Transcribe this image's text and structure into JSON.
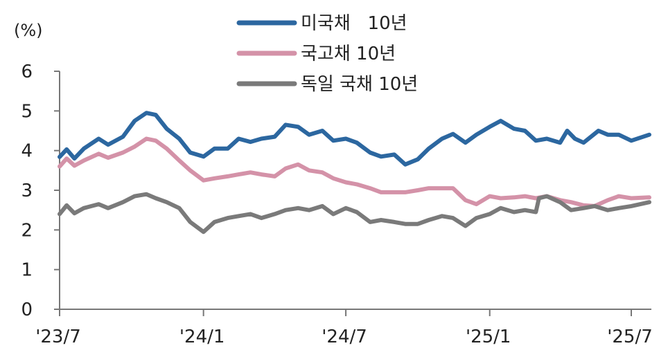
{
  "chart_data": {
    "type": "line",
    "unit_label": "(%)",
    "ylim": [
      0,
      6
    ],
    "yticks": [
      0,
      1,
      2,
      3,
      4,
      5,
      6
    ],
    "x_start": "2023-07-01",
    "x_end": "2025-07-24",
    "xticks": [
      {
        "date": "2023-07-01",
        "label": "'23/7"
      },
      {
        "date": "2024-01-01",
        "label": "'24/1"
      },
      {
        "date": "2024-07-01",
        "label": "'24/7"
      },
      {
        "date": "2025-01-01",
        "label": "'25/1"
      },
      {
        "date": "2025-07-01",
        "label": "'25/7"
      }
    ],
    "grid": false,
    "legend_position": "top-center",
    "series": [
      {
        "name": "미국채   10년",
        "color": "#2c67a0",
        "points": [
          [
            "2023-07-01",
            3.84
          ],
          [
            "2023-07-10",
            4.03
          ],
          [
            "2023-07-20",
            3.8
          ],
          [
            "2023-08-01",
            4.05
          ],
          [
            "2023-08-20",
            4.3
          ],
          [
            "2023-09-01",
            4.15
          ],
          [
            "2023-09-20",
            4.35
          ],
          [
            "2023-10-05",
            4.75
          ],
          [
            "2023-10-20",
            4.95
          ],
          [
            "2023-11-01",
            4.9
          ],
          [
            "2023-11-15",
            4.55
          ],
          [
            "2023-12-01",
            4.3
          ],
          [
            "2023-12-15",
            3.95
          ],
          [
            "2024-01-01",
            3.85
          ],
          [
            "2024-01-15",
            4.05
          ],
          [
            "2024-02-01",
            4.05
          ],
          [
            "2024-02-15",
            4.3
          ],
          [
            "2024-03-01",
            4.22
          ],
          [
            "2024-03-15",
            4.3
          ],
          [
            "2024-04-01",
            4.35
          ],
          [
            "2024-04-15",
            4.65
          ],
          [
            "2024-05-01",
            4.6
          ],
          [
            "2024-05-15",
            4.4
          ],
          [
            "2024-06-01",
            4.5
          ],
          [
            "2024-06-15",
            4.25
          ],
          [
            "2024-07-01",
            4.3
          ],
          [
            "2024-07-15",
            4.2
          ],
          [
            "2024-08-01",
            3.95
          ],
          [
            "2024-08-15",
            3.85
          ],
          [
            "2024-09-01",
            3.9
          ],
          [
            "2024-09-15",
            3.65
          ],
          [
            "2024-10-01",
            3.78
          ],
          [
            "2024-10-15",
            4.05
          ],
          [
            "2024-11-01",
            4.3
          ],
          [
            "2024-11-15",
            4.42
          ],
          [
            "2024-12-01",
            4.2
          ],
          [
            "2024-12-15",
            4.4
          ],
          [
            "2025-01-01",
            4.6
          ],
          [
            "2025-01-15",
            4.75
          ],
          [
            "2025-02-01",
            4.55
          ],
          [
            "2025-02-15",
            4.5
          ],
          [
            "2025-03-01",
            4.25
          ],
          [
            "2025-03-15",
            4.3
          ],
          [
            "2025-04-01",
            4.2
          ],
          [
            "2025-04-10",
            4.5
          ],
          [
            "2025-04-20",
            4.3
          ],
          [
            "2025-05-01",
            4.2
          ],
          [
            "2025-05-20",
            4.5
          ],
          [
            "2025-06-01",
            4.4
          ],
          [
            "2025-06-15",
            4.4
          ],
          [
            "2025-07-01",
            4.25
          ],
          [
            "2025-07-24",
            4.4
          ]
        ]
      },
      {
        "name": "국고채 10년",
        "color": "#d492a8",
        "points": [
          [
            "2023-07-01",
            3.6
          ],
          [
            "2023-07-10",
            3.8
          ],
          [
            "2023-07-20",
            3.62
          ],
          [
            "2023-08-01",
            3.75
          ],
          [
            "2023-08-20",
            3.92
          ],
          [
            "2023-09-01",
            3.82
          ],
          [
            "2023-09-20",
            3.95
          ],
          [
            "2023-10-05",
            4.1
          ],
          [
            "2023-10-20",
            4.3
          ],
          [
            "2023-11-01",
            4.25
          ],
          [
            "2023-11-15",
            4.05
          ],
          [
            "2023-12-01",
            3.75
          ],
          [
            "2023-12-15",
            3.5
          ],
          [
            "2024-01-01",
            3.25
          ],
          [
            "2024-01-15",
            3.3
          ],
          [
            "2024-02-01",
            3.35
          ],
          [
            "2024-02-15",
            3.4
          ],
          [
            "2024-03-01",
            3.45
          ],
          [
            "2024-03-15",
            3.4
          ],
          [
            "2024-04-01",
            3.35
          ],
          [
            "2024-04-15",
            3.55
          ],
          [
            "2024-05-01",
            3.65
          ],
          [
            "2024-05-15",
            3.5
          ],
          [
            "2024-06-01",
            3.45
          ],
          [
            "2024-06-15",
            3.3
          ],
          [
            "2024-07-01",
            3.2
          ],
          [
            "2024-07-15",
            3.15
          ],
          [
            "2024-08-01",
            3.05
          ],
          [
            "2024-08-15",
            2.95
          ],
          [
            "2024-09-01",
            2.95
          ],
          [
            "2024-09-15",
            2.95
          ],
          [
            "2024-10-01",
            3.0
          ],
          [
            "2024-10-15",
            3.05
          ],
          [
            "2024-11-01",
            3.05
          ],
          [
            "2024-11-15",
            3.05
          ],
          [
            "2024-12-01",
            2.75
          ],
          [
            "2024-12-15",
            2.65
          ],
          [
            "2025-01-01",
            2.85
          ],
          [
            "2025-01-15",
            2.8
          ],
          [
            "2025-02-01",
            2.82
          ],
          [
            "2025-02-15",
            2.85
          ],
          [
            "2025-03-01",
            2.8
          ],
          [
            "2025-03-15",
            2.85
          ],
          [
            "2025-04-01",
            2.75
          ],
          [
            "2025-04-15",
            2.7
          ],
          [
            "2025-05-01",
            2.62
          ],
          [
            "2025-05-15",
            2.6
          ],
          [
            "2025-06-01",
            2.75
          ],
          [
            "2025-06-15",
            2.85
          ],
          [
            "2025-07-01",
            2.8
          ],
          [
            "2025-07-24",
            2.82
          ]
        ]
      },
      {
        "name": "독일 국채 10년",
        "color": "#7a7a7a",
        "points": [
          [
            "2023-07-01",
            2.4
          ],
          [
            "2023-07-10",
            2.62
          ],
          [
            "2023-07-20",
            2.42
          ],
          [
            "2023-08-01",
            2.55
          ],
          [
            "2023-08-20",
            2.65
          ],
          [
            "2023-09-01",
            2.55
          ],
          [
            "2023-09-20",
            2.7
          ],
          [
            "2023-10-05",
            2.85
          ],
          [
            "2023-10-20",
            2.9
          ],
          [
            "2023-11-01",
            2.8
          ],
          [
            "2023-11-15",
            2.7
          ],
          [
            "2023-12-01",
            2.55
          ],
          [
            "2023-12-15",
            2.2
          ],
          [
            "2024-01-01",
            1.95
          ],
          [
            "2024-01-15",
            2.2
          ],
          [
            "2024-02-01",
            2.3
          ],
          [
            "2024-02-15",
            2.35
          ],
          [
            "2024-03-01",
            2.4
          ],
          [
            "2024-03-15",
            2.3
          ],
          [
            "2024-04-01",
            2.4
          ],
          [
            "2024-04-15",
            2.5
          ],
          [
            "2024-05-01",
            2.55
          ],
          [
            "2024-05-15",
            2.5
          ],
          [
            "2024-06-01",
            2.6
          ],
          [
            "2024-06-15",
            2.4
          ],
          [
            "2024-07-01",
            2.55
          ],
          [
            "2024-07-15",
            2.45
          ],
          [
            "2024-08-01",
            2.2
          ],
          [
            "2024-08-15",
            2.25
          ],
          [
            "2024-09-01",
            2.2
          ],
          [
            "2024-09-15",
            2.15
          ],
          [
            "2024-10-01",
            2.15
          ],
          [
            "2024-10-15",
            2.25
          ],
          [
            "2024-11-01",
            2.35
          ],
          [
            "2024-11-15",
            2.3
          ],
          [
            "2024-12-01",
            2.1
          ],
          [
            "2024-12-15",
            2.3
          ],
          [
            "2025-01-01",
            2.4
          ],
          [
            "2025-01-15",
            2.55
          ],
          [
            "2025-02-01",
            2.45
          ],
          [
            "2025-02-15",
            2.5
          ],
          [
            "2025-03-01",
            2.45
          ],
          [
            "2025-03-05",
            2.8
          ],
          [
            "2025-03-15",
            2.85
          ],
          [
            "2025-04-01",
            2.7
          ],
          [
            "2025-04-15",
            2.5
          ],
          [
            "2025-05-01",
            2.55
          ],
          [
            "2025-05-15",
            2.6
          ],
          [
            "2025-06-01",
            2.5
          ],
          [
            "2025-06-15",
            2.55
          ],
          [
            "2025-07-01",
            2.6
          ],
          [
            "2025-07-24",
            2.7
          ]
        ]
      }
    ]
  }
}
